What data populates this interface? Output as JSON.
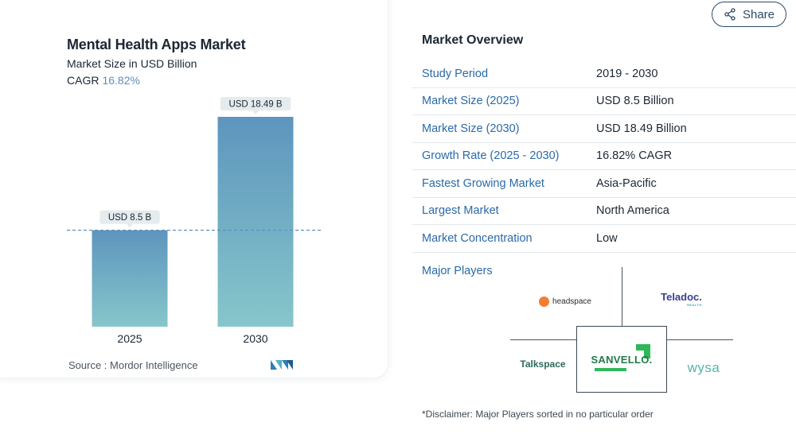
{
  "chart_data": {
    "type": "bar",
    "title": "Mental Health Apps Market",
    "subtitle": "Market Size in USD Billion",
    "cagr_label": "CAGR",
    "cagr_value": "16.82%",
    "categories": [
      "2025",
      "2030"
    ],
    "values": [
      8.5,
      18.49
    ],
    "data_labels": [
      "USD 8.5 B",
      "USD 18.49 B"
    ],
    "ylim": [
      0,
      18.49
    ],
    "reference_line": 8.5,
    "colors": {
      "bar_top": "#5d95bd",
      "bar_bottom": "#87c6cb",
      "reference": "#5b8fbf",
      "label_bg": "#e6ebee"
    },
    "source": "Source :  Mordor Intelligence"
  },
  "overview": {
    "title": "Market Overview",
    "share_label": "Share",
    "rows": [
      {
        "key": "Study Period",
        "value": "2019 - 2030"
      },
      {
        "key": "Market Size (2025)",
        "value": "USD 8.5 Billion"
      },
      {
        "key": "Market Size (2030)",
        "value": "USD 18.49 Billion"
      },
      {
        "key": "Growth Rate (2025 - 2030)",
        "value": "16.82% CAGR"
      },
      {
        "key": "Fastest Growing Market",
        "value": "Asia-Pacific"
      },
      {
        "key": "Largest Market",
        "value": "North America"
      },
      {
        "key": "Market Concentration",
        "value": "Low"
      }
    ],
    "players_label": "Major Players",
    "players": {
      "headspace": "headspace",
      "teladoc": "Teladoc.",
      "teladoc_sub": "HEALTH",
      "talkspace": "Talkspace",
      "sanvello": "SANVELLO.",
      "wysa": "wysa"
    },
    "disclaimer": "*Disclaimer: Major Players sorted in no particular order"
  }
}
